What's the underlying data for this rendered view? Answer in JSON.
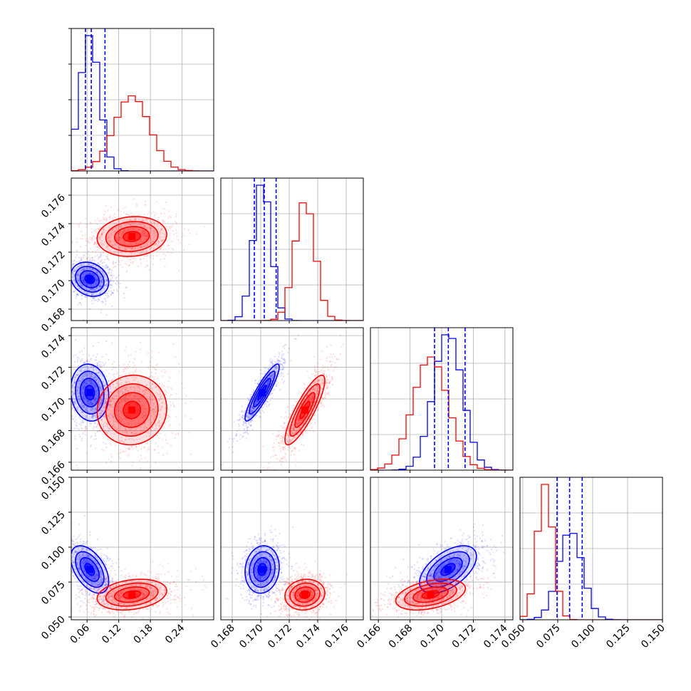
{
  "chart_data": {
    "type": "corner",
    "description_free": true,
    "series": [
      {
        "color": "#0000ff",
        "fill_color": "#0000ff"
      },
      {
        "color": "#ff0000",
        "fill_color": "#ff0000"
      }
    ],
    "parameters": [
      {
        "index": 0,
        "range": [
          0.03,
          0.3
        ],
        "ticks": [
          0.06,
          0.12,
          0.18,
          0.24
        ],
        "tick_labels": [
          "0.06",
          "0.12",
          "0.18",
          "0.24"
        ]
      },
      {
        "index": 1,
        "range": [
          0.1672,
          0.1772
        ],
        "ticks": [
          0.168,
          0.17,
          0.172,
          0.174,
          0.176
        ],
        "tick_labels": [
          "0.168",
          "0.170",
          "0.172",
          "0.174",
          "0.176"
        ]
      },
      {
        "index": 2,
        "range": [
          0.1655,
          0.1745
        ],
        "ticks": [
          0.166,
          0.168,
          0.17,
          0.172,
          0.174
        ],
        "tick_labels": [
          "0.166",
          "0.168",
          "0.170",
          "0.172",
          "0.174"
        ]
      },
      {
        "index": 3,
        "range": [
          0.048,
          0.15
        ],
        "ticks": [
          0.05,
          0.075,
          0.1,
          0.125,
          0.15
        ],
        "tick_labels": [
          "0.050",
          "0.075",
          "0.100",
          "0.125",
          "0.150"
        ]
      }
    ],
    "posteriors": {
      "blue": {
        "mean": [
          0.065,
          0.1701,
          0.1704,
          0.084
        ],
        "sd": [
          0.018,
          0.0006,
          0.0009,
          0.0085
        ]
      },
      "red": {
        "mean": [
          0.145,
          0.1731,
          0.1693,
          0.066
        ],
        "sd": [
          0.033,
          0.0007,
          0.0011,
          0.0055
        ]
      }
    },
    "correlations": {
      "blue": {
        "1-0": -0.2,
        "2-0": -0.1,
        "2-1": 0.9,
        "3-0": -0.5,
        "3-1": 0.1,
        "3-2": 0.55
      },
      "red": {
        "1-0": 0.1,
        "2-0": 0.05,
        "2-1": 0.85,
        "3-0": 0.25,
        "3-1": 0.1,
        "3-2": 0.4
      }
    },
    "quantile_lines": {
      "color": "#0000ff",
      "0": [
        0.057,
        0.068,
        0.094
      ],
      "1": [
        0.16955,
        0.17025,
        0.17108
      ],
      "2": [
        0.16955,
        0.17042,
        0.17148
      ],
      "3": [
        0.0745,
        0.0835,
        0.0925
      ]
    },
    "grid": true
  }
}
